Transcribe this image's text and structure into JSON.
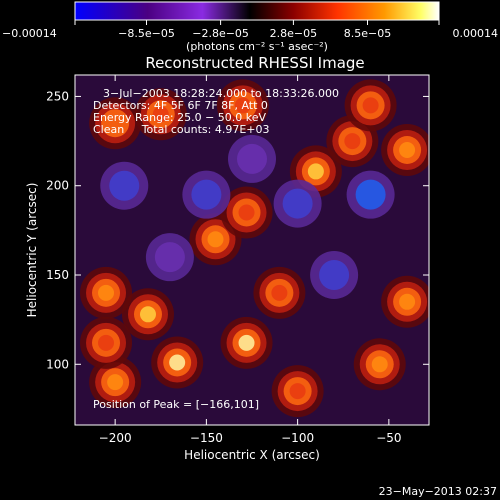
{
  "chart_data": {
    "type": "heatmap",
    "title": "Reconstructed RHESSI Image",
    "xlabel": "Heliocentric X (arcsec)",
    "ylabel": "Heliocentric Y (arcsec)",
    "xlim": [
      -222,
      -28
    ],
    "ylim": [
      66,
      262
    ],
    "xticks": [
      -200,
      -150,
      -100,
      -50
    ],
    "yticks": [
      100,
      150,
      200,
      250
    ],
    "xtick_labels": [
      "−200",
      "−150",
      "−100",
      "−50"
    ],
    "ytick_labels": [
      "100",
      "150",
      "200",
      "250"
    ],
    "colorbar": {
      "range": [
        -0.00014,
        0.00014
      ],
      "ticks": [
        -0.00014,
        -8.5e-05,
        -2.8e-05,
        2.8e-05,
        8.5e-05,
        0.00014
      ],
      "tick_labels": [
        "−0.00014",
        "−8.5e−05",
        "−2.8e−05",
        "2.8e−05",
        "8.5e−05",
        "0.00014"
      ],
      "units": "(photons cm⁻² s⁻¹ asec⁻²)",
      "colors": [
        "#0000ff",
        "#4b0082",
        "#8a2be2",
        "#000000",
        "#8b0000",
        "#ff3300",
        "#ff9900",
        "#ffff66",
        "#ffffff"
      ]
    },
    "annotations": [
      "3−Jul−2003 18:28:24.000 to 18:33:26.000",
      "Detectors: 4F 5F 6F 7F 8F, Att 0",
      "Energy Range: 25.0 − 50.0 keV",
      "Clean     Total counts: 4.97E+03"
    ],
    "peak_label": "Position of Peak = [−166,101]",
    "peak_position": [
      -166,
      101
    ],
    "blobs": [
      {
        "x": -166,
        "y": 101,
        "v": 1.0
      },
      {
        "x": -128,
        "y": 112,
        "v": 0.95
      },
      {
        "x": -182,
        "y": 128,
        "v": 0.85
      },
      {
        "x": -205,
        "y": 140,
        "v": 0.7
      },
      {
        "x": -110,
        "y": 140,
        "v": 0.55
      },
      {
        "x": -145,
        "y": 170,
        "v": 0.6
      },
      {
        "x": -128,
        "y": 185,
        "v": 0.55
      },
      {
        "x": -90,
        "y": 208,
        "v": 0.75
      },
      {
        "x": -70,
        "y": 225,
        "v": 0.55
      },
      {
        "x": -40,
        "y": 220,
        "v": 0.7
      },
      {
        "x": -40,
        "y": 135,
        "v": 0.7
      },
      {
        "x": -55,
        "y": 100,
        "v": 0.6
      },
      {
        "x": -100,
        "y": 85,
        "v": 0.55
      },
      {
        "x": -200,
        "y": 90,
        "v": 0.6
      },
      {
        "x": -205,
        "y": 112,
        "v": 0.55
      },
      {
        "x": -175,
        "y": 240,
        "v": 0.5
      },
      {
        "x": -130,
        "y": 245,
        "v": 0.5
      },
      {
        "x": -60,
        "y": 245,
        "v": 0.55
      },
      {
        "x": -200,
        "y": 235,
        "v": 0.45
      },
      {
        "x": -150,
        "y": 195,
        "v": -0.4
      },
      {
        "x": -195,
        "y": 200,
        "v": -0.45
      },
      {
        "x": -60,
        "y": 195,
        "v": -0.6
      },
      {
        "x": -100,
        "y": 190,
        "v": -0.35
      },
      {
        "x": -80,
        "y": 150,
        "v": -0.35
      },
      {
        "x": -170,
        "y": 160,
        "v": -0.3
      },
      {
        "x": -125,
        "y": 215,
        "v": -0.3
      }
    ]
  },
  "footer": {
    "timestamp": "23−May−2013 02:37"
  }
}
